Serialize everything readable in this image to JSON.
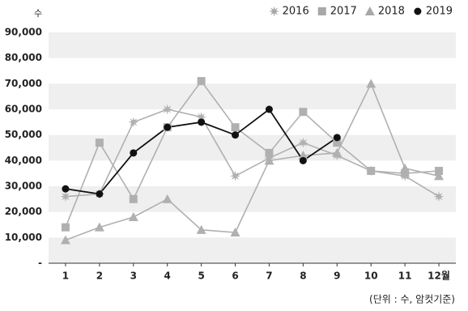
{
  "chart_data": {
    "type": "line",
    "y_label": "수",
    "note": "(단위 : 수, 암컷기준)",
    "categories": [
      "1",
      "2",
      "3",
      "4",
      "5",
      "6",
      "7",
      "8",
      "9",
      "10",
      "11",
      "12월"
    ],
    "series": [
      {
        "name": "2016",
        "color": "#b0b0b0",
        "marker": "star",
        "values": [
          26000,
          27000,
          55000,
          60000,
          57000,
          34000,
          41000,
          47000,
          42000,
          36000,
          34000,
          26000
        ]
      },
      {
        "name": "2017",
        "color": "#b0b0b0",
        "marker": "square",
        "values": [
          14000,
          47000,
          25000,
          53000,
          71000,
          53000,
          43000,
          59000,
          47000,
          36000,
          35000,
          36000
        ]
      },
      {
        "name": "2018",
        "color": "#b0b0b0",
        "marker": "triangle",
        "values": [
          9000,
          14000,
          18000,
          25000,
          13000,
          12000,
          40000,
          42000,
          43000,
          70000,
          37000,
          34000
        ]
      },
      {
        "name": "2019",
        "color": "#111111",
        "marker": "circle",
        "values": [
          29000,
          27000,
          43000,
          53000,
          55000,
          50000,
          60000,
          40000,
          49000,
          null,
          null,
          null
        ]
      }
    ],
    "ylim": [
      0,
      90000
    ],
    "yticks": [
      {
        "value": 0,
        "label": "-"
      },
      {
        "value": 10000,
        "label": "10,000"
      },
      {
        "value": 20000,
        "label": "20,000"
      },
      {
        "value": 30000,
        "label": "30,000"
      },
      {
        "value": 40000,
        "label": "40,000"
      },
      {
        "value": 50000,
        "label": "50,000"
      },
      {
        "value": 60000,
        "label": "60,000"
      },
      {
        "value": 70000,
        "label": "70,000"
      },
      {
        "value": 80000,
        "label": "80,000"
      },
      {
        "value": 90000,
        "label": "90,000"
      }
    ],
    "grid": "bands",
    "legend": "top-right"
  }
}
